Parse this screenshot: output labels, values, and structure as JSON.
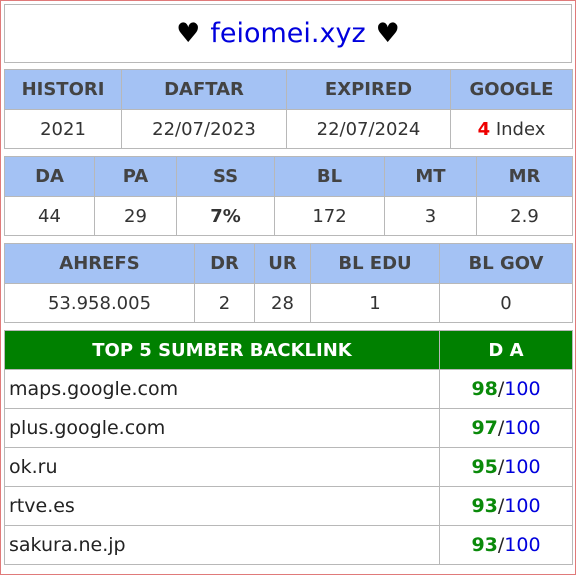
{
  "header": {
    "heart_left": "♥",
    "domain": "feiomei.xyz",
    "heart_right": "♥"
  },
  "table1": {
    "headers": [
      "HISTORI",
      "DAFTAR",
      "EXPIRED",
      "GOOGLE"
    ],
    "values": {
      "histori": "2021",
      "daftar": "22/07/2023",
      "expired": "22/07/2024",
      "google_count": "4",
      "google_label": "Index"
    }
  },
  "table2": {
    "headers": [
      "DA",
      "PA",
      "SS",
      "BL",
      "MT",
      "MR"
    ],
    "values": [
      "44",
      "29",
      "7%",
      "172",
      "3",
      "2.9"
    ]
  },
  "table3": {
    "headers": [
      "AHREFS",
      "DR",
      "UR",
      "BL EDU",
      "BL GOV"
    ],
    "values": [
      "53.958.005",
      "2",
      "28",
      "1",
      "0"
    ]
  },
  "backlinks": {
    "title": "TOP 5 SUMBER BACKLINK",
    "da_header": "D A",
    "rows": [
      {
        "site": "maps.google.com",
        "score": "98",
        "max": "100"
      },
      {
        "site": "plus.google.com",
        "score": "97",
        "max": "100"
      },
      {
        "site": "ok.ru",
        "score": "95",
        "max": "100"
      },
      {
        "site": "rtve.es",
        "score": "93",
        "max": "100"
      },
      {
        "site": "sakura.ne.jp",
        "score": "93",
        "max": "100"
      }
    ]
  },
  "colors": {
    "header_blue": "#a4c2f4",
    "backlink_green": "#008000",
    "domain_blue": "#0000dd",
    "index_red": "#ee0000",
    "score_green": "#0a8a0a"
  }
}
